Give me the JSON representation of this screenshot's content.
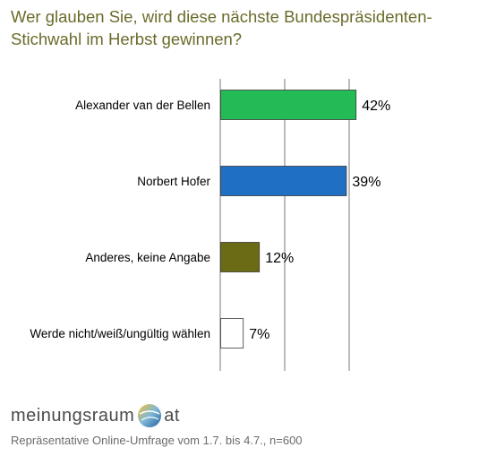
{
  "title": "Wer glauben Sie, wird diese nächste Bundespräsidenten-Stichwahl im Herbst gewinnen?",
  "chart_data": {
    "type": "bar",
    "orientation": "horizontal",
    "categories": [
      "Alexander van der Bellen",
      "Norbert Hofer",
      "Anderes, keine Angabe",
      "Werde nicht/weiß/ungültig wählen"
    ],
    "values": [
      42,
      39,
      12,
      7
    ],
    "value_labels": [
      "42%",
      "39%",
      "12%",
      "7%"
    ],
    "colors": [
      "#22bb55",
      "#1f6fc5",
      "#6b6b16",
      "#ffffff"
    ],
    "xlim": [
      0,
      50
    ],
    "gridlines": [
      0,
      20,
      40
    ],
    "grid": true
  },
  "logo": {
    "part1": "meinungsraum",
    "part2": "at"
  },
  "footnote": "Repräsentative Online-Umfrage vom 1.7. bis 4.7., n=600"
}
